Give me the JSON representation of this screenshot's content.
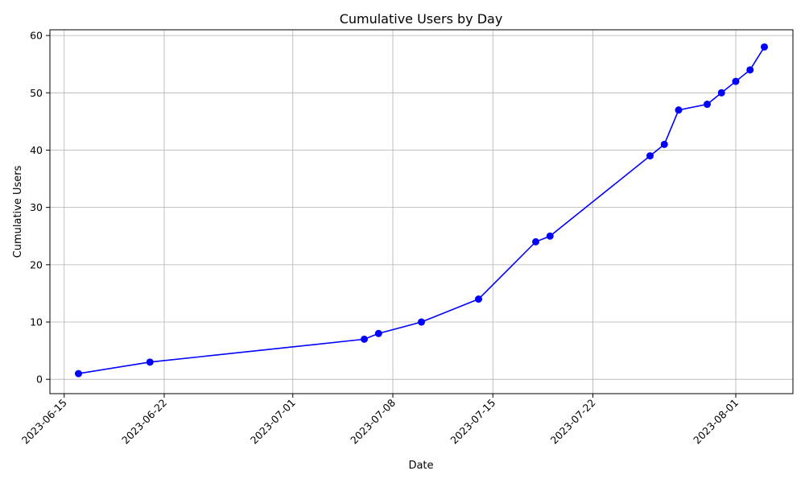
{
  "chart_data": {
    "type": "line",
    "title": "Cumulative Users by Day",
    "xlabel": "Date",
    "ylabel": "Cumulative Users",
    "x_type": "date",
    "x": [
      "2023-06-16",
      "2023-06-21",
      "2023-07-06",
      "2023-07-07",
      "2023-07-10",
      "2023-07-14",
      "2023-07-18",
      "2023-07-19",
      "2023-07-26",
      "2023-07-27",
      "2023-07-28",
      "2023-07-30",
      "2023-07-31",
      "2023-08-01",
      "2023-08-02",
      "2023-08-03"
    ],
    "series": [
      {
        "values": [
          1,
          3,
          7,
          8,
          10,
          14,
          24,
          25,
          39,
          41,
          47,
          48,
          50,
          52,
          54,
          58
        ],
        "color": "#0000ff",
        "marker": "circle"
      }
    ],
    "xlim": [
      "2023-06-14",
      "2023-08-05"
    ],
    "ylim": [
      -2.5,
      61
    ],
    "x_ticks": [
      "2023-06-15",
      "2023-06-22",
      "2023-07-01",
      "2023-07-08",
      "2023-07-15",
      "2023-07-22",
      "2023-08-01"
    ],
    "y_ticks": [
      0,
      10,
      20,
      30,
      40,
      50,
      60
    ],
    "grid": true
  }
}
